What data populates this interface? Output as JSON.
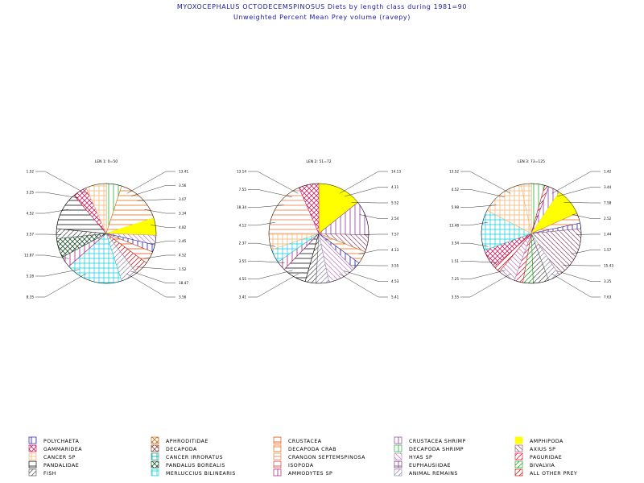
{
  "title": "MYOXOCEPHALUS OCTODECEMSPINOSUS Diets by length class during 1981=90",
  "subtitle": "Unweighted Percent Mean Prey volume (ravepy)",
  "categories": [
    {
      "name": "POLYCHAETA",
      "color": "#1a1aa6",
      "pattern": "vert"
    },
    {
      "name": "APHRODITIDAE",
      "color": "#c87020",
      "pattern": "cross"
    },
    {
      "name": "CRUSTACEA",
      "color": "#e05010",
      "pattern": "horiz"
    },
    {
      "name": "CRUSTACEA SHRIMP",
      "color": "#8a3aa0",
      "pattern": "vert"
    },
    {
      "name": "AMPHIPODA",
      "color": "#ffff00",
      "pattern": "solid"
    },
    {
      "name": "GAMMARIDEA",
      "color": "#cc2060",
      "pattern": "cross"
    },
    {
      "name": "DECAPODA",
      "color": "#8a4a3a",
      "pattern": "cross"
    },
    {
      "name": "DECAPODA CRAB",
      "color": "#e07018",
      "pattern": "horiz"
    },
    {
      "name": "DECAPODA SHRIMP",
      "color": "#20b030",
      "pattern": "vert"
    },
    {
      "name": "AXIUS SP",
      "color": "#9a5a7a",
      "pattern": "diagr"
    },
    {
      "name": "CANCER SP",
      "color": "#f0b878",
      "pattern": "grid"
    },
    {
      "name": "CANCER IRRORATUS",
      "color": "#20a0a0",
      "pattern": "grid"
    },
    {
      "name": "CRANGON SEPTEMSPINOSA",
      "color": "#e08050",
      "pattern": "horiz"
    },
    {
      "name": "HYAS SP",
      "color": "#c088c0",
      "pattern": "diagr"
    },
    {
      "name": "PAGURIDAE",
      "color": "#e02040",
      "pattern": "diag"
    },
    {
      "name": "PANDALIDAE",
      "color": "#101010",
      "pattern": "horiz"
    },
    {
      "name": "PANDALUS BOREALIS",
      "color": "#205030",
      "pattern": "cross"
    },
    {
      "name": "ISOPODA",
      "color": "#d04040",
      "pattern": "horiz"
    },
    {
      "name": "EUPHAUSIIDAE",
      "color": "#7a3a7a",
      "pattern": "grid"
    },
    {
      "name": "BIVALVIA",
      "color": "#20a020",
      "pattern": "diag"
    },
    {
      "name": "FISH",
      "color": "#606060",
      "pattern": "diag"
    },
    {
      "name": "MERLUCCIUS BILINEARIS",
      "color": "#20d0e0",
      "pattern": "grid"
    },
    {
      "name": "AMMODYTES SP",
      "color": "#a02080",
      "pattern": "vert"
    },
    {
      "name": "ANIMAL REMAINS",
      "color": "#9a90b0",
      "pattern": "diag"
    },
    {
      "name": "ALL OTHER PREY",
      "color": "#c02020",
      "pattern": "diag"
    }
  ],
  "chart_data": [
    {
      "type": "pie",
      "title": "LEN 1: 0=50",
      "slices": [
        {
          "category": "DECAPODA SHRIMP",
          "value": 5
        },
        {
          "category": "DECAPODA CRAB",
          "value": 15
        },
        {
          "category": "AMPHIPODA",
          "value": 5.6
        },
        {
          "category": "HYAS SP",
          "value": 3.1
        },
        {
          "category": "POLYCHAETA",
          "value": 2.4
        },
        {
          "category": "CRUSTACEA",
          "value": 4.0
        },
        {
          "category": "ALL OTHER PREY",
          "value": 4.5
        },
        {
          "category": "ANIMAL REMAINS",
          "value": 5.5
        },
        {
          "category": "MERLUCCIUS BILINEARIS",
          "value": 18.5
        },
        {
          "category": "AMMODYTES SP",
          "value": 3.6
        },
        {
          "category": "PANDALUS BOREALIS",
          "value": 6.2
        },
        {
          "category": "FISH",
          "value": 3.2
        },
        {
          "category": "PANDALIDAE",
          "value": 12.3
        },
        {
          "category": "GAMMARIDEA",
          "value": 4.6
        },
        {
          "category": "CANCER SP",
          "value": 6.6
        }
      ],
      "left_labels": [
        "1.52",
        "3.25",
        "4.52",
        "3.57",
        "13.87",
        "5.28",
        "8.35"
      ],
      "right_labels": [
        "13.41",
        "3.56",
        "3.07",
        "3.34",
        "4.82",
        "2.45",
        "4.52",
        "1.52",
        "18.47",
        "3.56"
      ]
    },
    {
      "type": "pie",
      "title": "LEN 2: 51=72",
      "slices": [
        {
          "category": "AMPHIPODA",
          "value": 14.3
        },
        {
          "category": "CRUSTACEA SHRIMP",
          "value": 11.2
        },
        {
          "category": "AXIUS SP",
          "value": 5.5
        },
        {
          "category": "DECAPODA CRAB",
          "value": 4.1
        },
        {
          "category": "POLYCHAETA",
          "value": 2.5
        },
        {
          "category": "HYAS SP",
          "value": 9.1
        },
        {
          "category": "ANIMAL REMAINS",
          "value": 4.2
        },
        {
          "category": "FISH",
          "value": 3.5
        },
        {
          "category": "PANDALIDAE",
          "value": 7.8
        },
        {
          "category": "AMMODYTES SP",
          "value": 3.1
        },
        {
          "category": "MERLUCCIUS BILINEARIS",
          "value": 4.4
        },
        {
          "category": "CANCER SP",
          "value": 5.3
        },
        {
          "category": "CRANGON SEPTEMSPINOSA",
          "value": 18.5
        },
        {
          "category": "GAMMARIDEA",
          "value": 6.5
        }
      ],
      "left_labels": [
        "13.14",
        "7.55",
        "18.34",
        "4.12",
        "2.37",
        "3.55",
        "4.55",
        "3.41"
      ],
      "right_labels": [
        "14.13",
        "4.11",
        "5.52",
        "2.54",
        "7.57",
        "4.13",
        "3.55",
        "4.53",
        "5.41"
      ]
    },
    {
      "type": "pie",
      "title": "LEN 3: 73=125",
      "slices": [
        {
          "category": "DECAPODA SHRIMP",
          "value": 3.9
        },
        {
          "category": "ALL OTHER PREY",
          "value": 1.2
        },
        {
          "category": "CRUSTACEA SHRIMP",
          "value": 3.4
        },
        {
          "category": "AMPHIPODA",
          "value": 7.9
        },
        {
          "category": "DECAPODA CRAB",
          "value": 3.0
        },
        {
          "category": "POLYCHAETA",
          "value": 1.6
        },
        {
          "category": "AXIUS SP",
          "value": 15.3
        },
        {
          "category": "ANIMAL REMAINS",
          "value": 3.4
        },
        {
          "category": "FISH",
          "value": 4.5
        },
        {
          "category": "BIVALVIA",
          "value": 3.0
        },
        {
          "category": "PAGURIDAE",
          "value": 2.5
        },
        {
          "category": "HYAS SP",
          "value": 5.0
        },
        {
          "category": "ALL OTHER PREY",
          "value": 2.0
        },
        {
          "category": "GAMMARIDEA",
          "value": 5.5
        },
        {
          "category": "MERLUCCIUS BILINEARIS",
          "value": 11.8
        },
        {
          "category": "CANCER SP",
          "value": 12.5
        },
        {
          "category": "CANCER SP",
          "value": 3.0
        }
      ],
      "left_labels": [
        "13.52",
        "4.52",
        "5.98",
        "13.48",
        "3.54",
        "1.51",
        "7.25",
        "3.55"
      ],
      "right_labels": [
        "1.42",
        "3.44",
        "7.58",
        "2.52",
        "1.44",
        "1.57",
        "15.43",
        "3.25",
        "7.63"
      ]
    }
  ],
  "legend": {
    "columns": 5,
    "rows": 5
  }
}
